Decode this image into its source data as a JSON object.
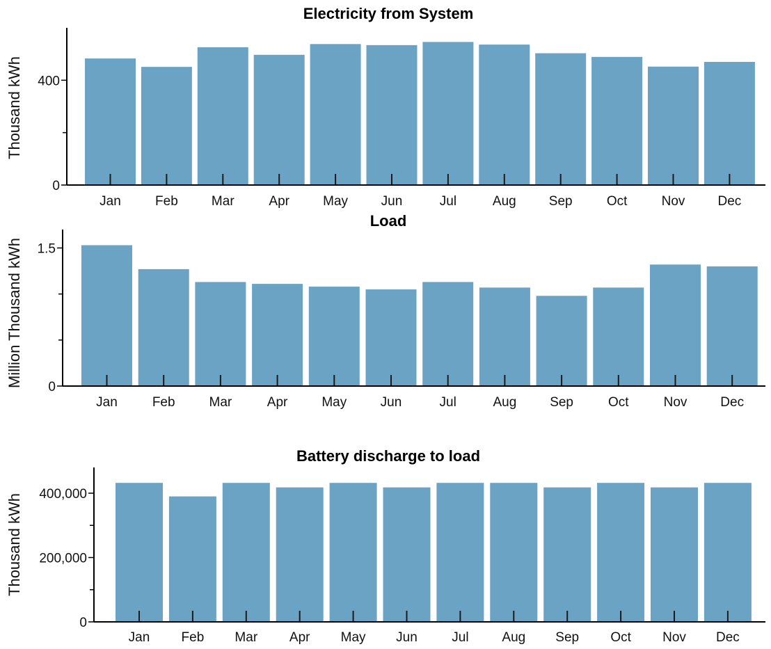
{
  "chart_data": [
    {
      "type": "bar",
      "title": "Electricity from System",
      "xlabel": "",
      "ylabel": "Thousand kWh",
      "categories": [
        "Jan",
        "Feb",
        "Mar",
        "Apr",
        "May",
        "Jun",
        "Jul",
        "Aug",
        "Sep",
        "Oct",
        "Nov",
        "Dec"
      ],
      "values": [
        483,
        451,
        526,
        497,
        538,
        534,
        546,
        536,
        503,
        489,
        452,
        470
      ],
      "ylim": [
        0,
        600
      ],
      "yticks": [
        0,
        400
      ],
      "ytick_labels": [
        "0",
        "400"
      ],
      "minor_yticks": [
        200
      ],
      "bar_color": "#6aa3c4",
      "grid": false
    },
    {
      "type": "bar",
      "title": "Load",
      "xlabel": "",
      "ylabel": "Million Thousand kWh",
      "categories": [
        "Jan",
        "Feb",
        "Mar",
        "Apr",
        "May",
        "Jun",
        "Jul",
        "Aug",
        "Sep",
        "Oct",
        "Nov",
        "Dec"
      ],
      "values": [
        1.53,
        1.27,
        1.13,
        1.11,
        1.08,
        1.05,
        1.13,
        1.07,
        0.98,
        1.07,
        1.32,
        1.3
      ],
      "ylim": [
        0,
        1.7
      ],
      "yticks": [
        0,
        1.5
      ],
      "ytick_labels": [
        "0",
        "1.5"
      ],
      "minor_yticks": [
        0.5,
        1.0
      ],
      "bar_color": "#6aa3c4",
      "grid": false
    },
    {
      "type": "bar",
      "title": "Battery discharge to load",
      "xlabel": "",
      "ylabel": "Thousand kWh",
      "categories": [
        "Jan",
        "Feb",
        "Mar",
        "Apr",
        "May",
        "Jun",
        "Jul",
        "Aug",
        "Sep",
        "Oct",
        "Nov",
        "Dec"
      ],
      "values": [
        432000,
        390000,
        432000,
        418000,
        432000,
        418000,
        432000,
        432000,
        418000,
        432000,
        418000,
        432000
      ],
      "ylim": [
        0,
        480000
      ],
      "yticks": [
        0,
        200000,
        400000
      ],
      "ytick_labels": [
        "0",
        "200,000",
        "400,000"
      ],
      "minor_yticks": [
        100000,
        300000
      ],
      "bar_color": "#6aa3c4",
      "grid": false
    }
  ]
}
